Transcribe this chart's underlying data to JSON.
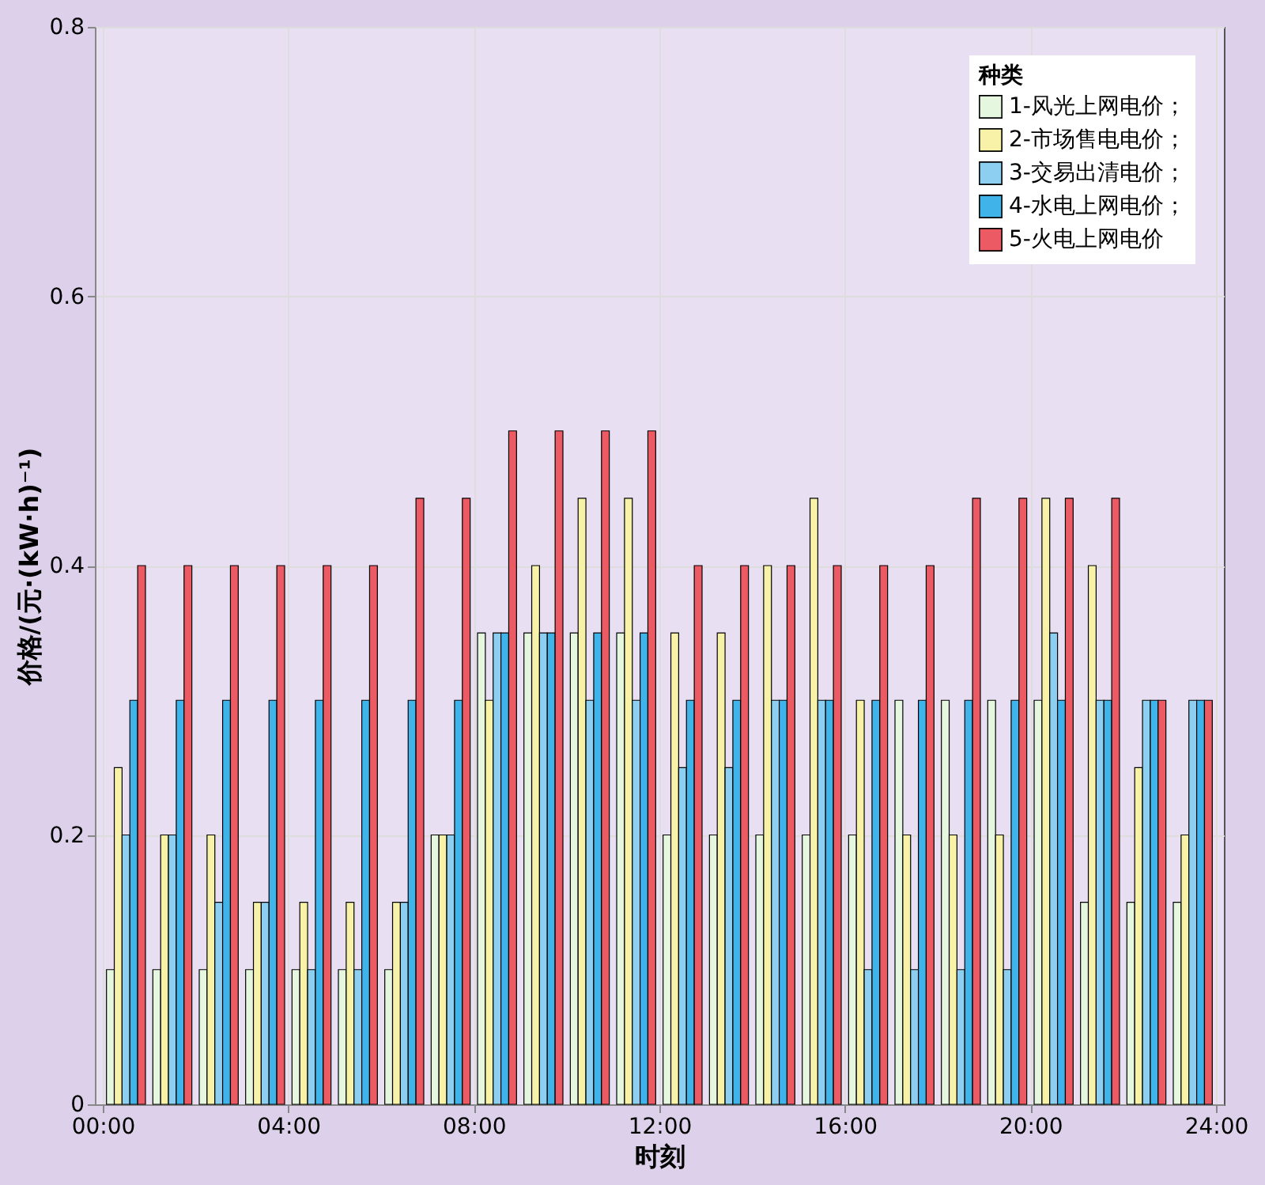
{
  "chart_data": {
    "type": "bar",
    "xlabel": "时刻",
    "ylabel": "价格/(元·(kW·h)⁻¹)",
    "legend_title": "种类",
    "x": [
      0.5,
      1.5,
      2.5,
      3.5,
      4.5,
      5.5,
      6.5,
      7.5,
      8.5,
      9.5,
      10.5,
      11.5,
      12.5,
      13.5,
      14.5,
      15.5,
      16.5,
      17.5,
      18.5,
      19.5,
      20.5,
      21.5,
      22.5,
      23.5
    ],
    "xlim": [
      0,
      24
    ],
    "xticks": [
      {
        "value": 0,
        "label": "00:00"
      },
      {
        "value": 4,
        "label": "04:00"
      },
      {
        "value": 8,
        "label": "08:00"
      },
      {
        "value": 12,
        "label": "12:00"
      },
      {
        "value": 16,
        "label": "16:00"
      },
      {
        "value": 20,
        "label": "20:00"
      },
      {
        "value": 24,
        "label": "24:00"
      }
    ],
    "ylim": [
      0,
      0.8
    ],
    "yticks": [
      0,
      0.2,
      0.4,
      0.6,
      0.8
    ],
    "grid": true,
    "legend": "top right",
    "series": [
      {
        "name": "1-风光上网电价；",
        "color": "#e6f7e0",
        "values": [
          0.1,
          0.1,
          0.1,
          0.1,
          0.1,
          0.1,
          0.1,
          0.2,
          0.35,
          0.35,
          0.35,
          0.35,
          0.2,
          0.2,
          0.2,
          0.2,
          0.2,
          0.3,
          0.3,
          0.3,
          0.3,
          0.15,
          0.15,
          0.15
        ]
      },
      {
        "name": "2-市场售电电价；",
        "color": "#f7f2a8",
        "values": [
          0.25,
          0.2,
          0.2,
          0.15,
          0.15,
          0.15,
          0.15,
          0.2,
          0.3,
          0.4,
          0.45,
          0.45,
          0.35,
          0.35,
          0.4,
          0.45,
          0.3,
          0.2,
          0.2,
          0.2,
          0.45,
          0.4,
          0.25,
          0.2
        ]
      },
      {
        "name": "3-交易出清电价；",
        "color": "#8ccff0",
        "values": [
          0.2,
          0.2,
          0.15,
          0.15,
          0.1,
          0.1,
          0.15,
          0.2,
          0.35,
          0.35,
          0.3,
          0.3,
          0.25,
          0.25,
          0.3,
          0.3,
          0.1,
          0.1,
          0.1,
          0.1,
          0.35,
          0.3,
          0.3,
          0.3
        ]
      },
      {
        "name": "4-水电上网电价；",
        "color": "#40b4e8",
        "values": [
          0.3,
          0.3,
          0.3,
          0.3,
          0.3,
          0.3,
          0.3,
          0.3,
          0.35,
          0.35,
          0.35,
          0.35,
          0.3,
          0.3,
          0.3,
          0.3,
          0.3,
          0.3,
          0.3,
          0.3,
          0.3,
          0.3,
          0.3,
          0.3
        ]
      },
      {
        "name": "5-火电上网电价",
        "color": "#ec5a64",
        "values": [
          0.4,
          0.4,
          0.4,
          0.4,
          0.4,
          0.4,
          0.45,
          0.45,
          0.5,
          0.5,
          0.5,
          0.5,
          0.4,
          0.4,
          0.4,
          0.4,
          0.4,
          0.4,
          0.45,
          0.45,
          0.45,
          0.45,
          0.3,
          0.3
        ]
      }
    ]
  }
}
